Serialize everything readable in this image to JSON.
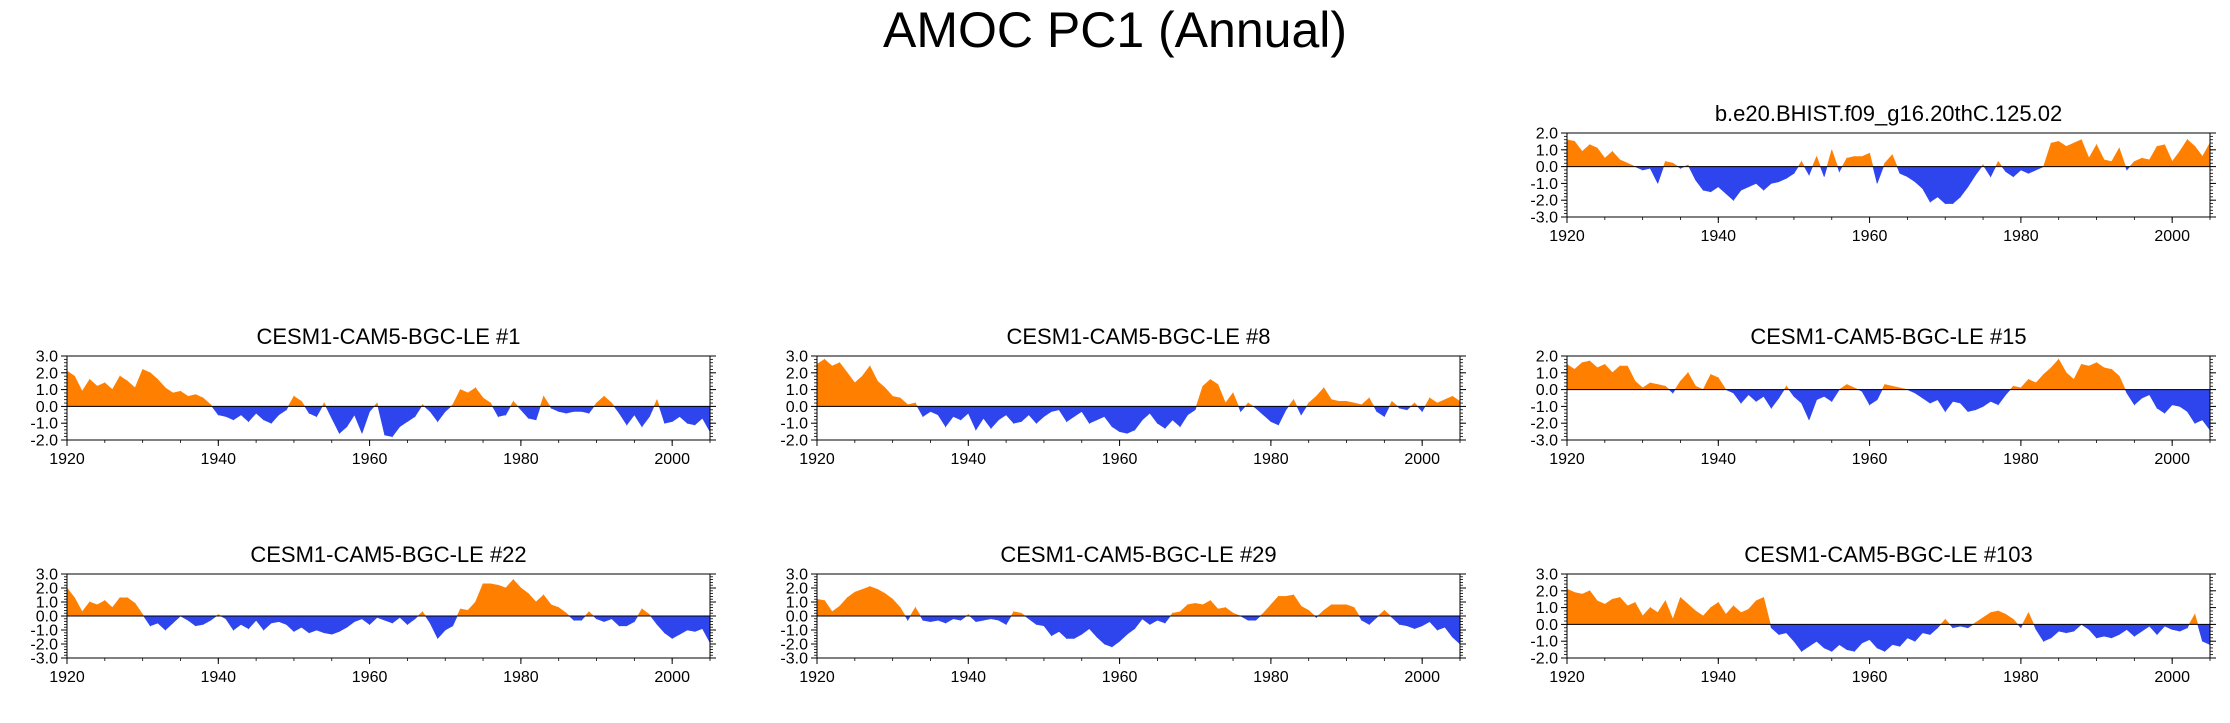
{
  "title": "AMOC PC1 (Annual)",
  "colors": {
    "positive": "#ff8000",
    "negative": "#2e45ee",
    "axis": "#000000"
  },
  "chart_data": [
    {
      "type": "area",
      "title": "b.e20.BHIST.f09_g16.20thC.125.02",
      "xlim": [
        1920,
        2005
      ],
      "ylim": [
        -3.0,
        2.0
      ],
      "yticks": [
        "2.0",
        "1.0",
        "0.0",
        "-1.0",
        "-2.0",
        "-3.0"
      ],
      "xticks": [
        "1920",
        "1940",
        "1960",
        "1980",
        "2000"
      ],
      "x": [
        1920,
        1921,
        1922,
        1923,
        1924,
        1925,
        1926,
        1927,
        1928,
        1929,
        1930,
        1931,
        1932,
        1933,
        1934,
        1935,
        1936,
        1937,
        1938,
        1939,
        1940,
        1941,
        1942,
        1943,
        1944,
        1945,
        1946,
        1947,
        1948,
        1949,
        1950,
        1951,
        1952,
        1953,
        1954,
        1955,
        1956,
        1957,
        1958,
        1959,
        1960,
        1961,
        1962,
        1963,
        1964,
        1965,
        1966,
        1967,
        1968,
        1969,
        1970,
        1971,
        1972,
        1973,
        1974,
        1975,
        1976,
        1977,
        1978,
        1979,
        1980,
        1981,
        1982,
        1983,
        1984,
        1985,
        1986,
        1987,
        1988,
        1989,
        1990,
        1991,
        1992,
        1993,
        1994,
        1995,
        1996,
        1997,
        1998,
        1999,
        2000,
        2001,
        2002,
        2003,
        2004,
        2005
      ],
      "values": [
        1.6,
        1.5,
        0.9,
        1.3,
        1.1,
        0.5,
        0.9,
        0.4,
        0.2,
        0.0,
        -0.2,
        -0.1,
        -1.0,
        0.3,
        0.2,
        -0.1,
        0.1,
        -0.8,
        -1.4,
        -1.5,
        -1.2,
        -1.6,
        -2.0,
        -1.4,
        -1.2,
        -1.0,
        -1.4,
        -1.0,
        -0.9,
        -0.7,
        -0.4,
        0.3,
        -0.5,
        0.6,
        -0.6,
        1.0,
        -0.3,
        0.5,
        0.6,
        0.6,
        0.8,
        -1.0,
        0.2,
        0.7,
        -0.4,
        -0.6,
        -0.9,
        -1.3,
        -2.1,
        -1.8,
        -2.2,
        -2.2,
        -1.8,
        -1.2,
        -0.5,
        0.1,
        -0.6,
        0.3,
        -0.3,
        -0.6,
        -0.2,
        -0.4,
        -0.2,
        0.0,
        1.4,
        1.5,
        1.2,
        1.4,
        1.6,
        0.5,
        1.3,
        0.4,
        0.3,
        1.1,
        -0.2,
        0.3,
        0.5,
        0.4,
        1.2,
        1.3,
        0.3,
        0.9,
        1.6,
        1.2,
        0.6,
        1.4
      ]
    },
    {
      "type": "area",
      "title": "CESM1-CAM5-BGC-LE #1",
      "xlim": [
        1920,
        2005
      ],
      "ylim": [
        -2.0,
        3.0
      ],
      "yticks": [
        "3.0",
        "2.0",
        "1.0",
        "0.0",
        "-1.0",
        "-2.0"
      ],
      "xticks": [
        "1920",
        "1940",
        "1960",
        "1980",
        "2000"
      ],
      "x": [
        1920,
        1921,
        1922,
        1923,
        1924,
        1925,
        1926,
        1927,
        1928,
        1929,
        1930,
        1931,
        1932,
        1933,
        1934,
        1935,
        1936,
        1937,
        1938,
        1939,
        1940,
        1941,
        1942,
        1943,
        1944,
        1945,
        1946,
        1947,
        1948,
        1949,
        1950,
        1951,
        1952,
        1953,
        1954,
        1955,
        1956,
        1957,
        1958,
        1959,
        1960,
        1961,
        1962,
        1963,
        1964,
        1965,
        1966,
        1967,
        1968,
        1969,
        1970,
        1971,
        1972,
        1973,
        1974,
        1975,
        1976,
        1977,
        1978,
        1979,
        1980,
        1981,
        1982,
        1983,
        1984,
        1985,
        1986,
        1987,
        1988,
        1989,
        1990,
        1991,
        1992,
        1993,
        1994,
        1995,
        1996,
        1997,
        1998,
        1999,
        2000,
        2001,
        2002,
        2003,
        2004,
        2005
      ],
      "values": [
        2.1,
        1.8,
        0.9,
        1.6,
        1.2,
        1.4,
        1.0,
        1.8,
        1.5,
        1.1,
        2.2,
        2.0,
        1.6,
        1.1,
        0.8,
        0.9,
        0.6,
        0.7,
        0.5,
        0.1,
        -0.5,
        -0.6,
        -0.8,
        -0.5,
        -0.9,
        -0.4,
        -0.8,
        -1.0,
        -0.5,
        -0.2,
        0.6,
        0.3,
        -0.4,
        -0.6,
        0.2,
        -0.7,
        -1.6,
        -1.2,
        -0.5,
        -1.6,
        -0.3,
        0.2,
        -1.7,
        -1.8,
        -1.2,
        -0.9,
        -0.6,
        0.1,
        -0.3,
        -0.9,
        -0.3,
        0.1,
        1.0,
        0.8,
        1.1,
        0.5,
        0.2,
        -0.6,
        -0.5,
        0.3,
        -0.2,
        -0.7,
        -0.8,
        0.6,
        -0.1,
        -0.3,
        -0.4,
        -0.3,
        -0.3,
        -0.4,
        0.2,
        0.6,
        0.2,
        -0.4,
        -1.1,
        -0.5,
        -1.2,
        -0.6,
        0.4,
        -1.0,
        -0.9,
        -0.6,
        -1.0,
        -1.1,
        -0.7,
        -1.5
      ]
    },
    {
      "type": "area",
      "title": "CESM1-CAM5-BGC-LE #8",
      "xlim": [
        1920,
        2005
      ],
      "ylim": [
        -2.0,
        3.0
      ],
      "yticks": [
        "3.0",
        "2.0",
        "1.0",
        "0.0",
        "-1.0",
        "-2.0"
      ],
      "xticks": [
        "1920",
        "1940",
        "1960",
        "1980",
        "2000"
      ],
      "x": [
        1920,
        1921,
        1922,
        1923,
        1924,
        1925,
        1926,
        1927,
        1928,
        1929,
        1930,
        1931,
        1932,
        1933,
        1934,
        1935,
        1936,
        1937,
        1938,
        1939,
        1940,
        1941,
        1942,
        1943,
        1944,
        1945,
        1946,
        1947,
        1948,
        1949,
        1950,
        1951,
        1952,
        1953,
        1954,
        1955,
        1956,
        1957,
        1958,
        1959,
        1960,
        1961,
        1962,
        1963,
        1964,
        1965,
        1966,
        1967,
        1968,
        1969,
        1970,
        1971,
        1972,
        1973,
        1974,
        1975,
        1976,
        1977,
        1978,
        1979,
        1980,
        1981,
        1982,
        1983,
        1984,
        1985,
        1986,
        1987,
        1988,
        1989,
        1990,
        1991,
        1992,
        1993,
        1994,
        1995,
        1996,
        1997,
        1998,
        1999,
        2000,
        2001,
        2002,
        2003,
        2004,
        2005
      ],
      "values": [
        2.5,
        2.8,
        2.4,
        2.6,
        2.0,
        1.4,
        1.8,
        2.4,
        1.5,
        1.1,
        0.6,
        0.5,
        0.1,
        0.2,
        -0.6,
        -0.3,
        -0.5,
        -1.2,
        -0.6,
        -0.8,
        -0.4,
        -1.4,
        -0.7,
        -1.3,
        -0.8,
        -0.5,
        -1.0,
        -0.9,
        -0.5,
        -1.0,
        -0.6,
        -0.3,
        -0.2,
        -0.9,
        -0.6,
        -0.3,
        -1.0,
        -0.8,
        -0.6,
        -1.2,
        -1.5,
        -1.6,
        -1.4,
        -0.8,
        -0.4,
        -1.0,
        -1.3,
        -0.8,
        -1.2,
        -0.5,
        -0.2,
        1.2,
        1.6,
        1.3,
        0.2,
        0.8,
        -0.3,
        0.2,
        -0.1,
        -0.5,
        -0.9,
        -1.1,
        -0.2,
        0.4,
        -0.5,
        0.2,
        0.6,
        1.1,
        0.4,
        0.3,
        0.3,
        0.2,
        0.1,
        0.5,
        -0.3,
        -0.6,
        0.3,
        -0.1,
        -0.2,
        0.2,
        -0.3,
        0.5,
        0.2,
        0.4,
        0.6,
        0.3
      ]
    },
    {
      "type": "area",
      "title": "CESM1-CAM5-BGC-LE #15",
      "xlim": [
        1920,
        2005
      ],
      "ylim": [
        -3.0,
        2.0
      ],
      "yticks": [
        "2.0",
        "1.0",
        "0.0",
        "-1.0",
        "-2.0",
        "-3.0"
      ],
      "xticks": [
        "1920",
        "1940",
        "1960",
        "1980",
        "2000"
      ],
      "x": [
        1920,
        1921,
        1922,
        1923,
        1924,
        1925,
        1926,
        1927,
        1928,
        1929,
        1930,
        1931,
        1932,
        1933,
        1934,
        1935,
        1936,
        1937,
        1938,
        1939,
        1940,
        1941,
        1942,
        1943,
        1944,
        1945,
        1946,
        1947,
        1948,
        1949,
        1950,
        1951,
        1952,
        1953,
        1954,
        1955,
        1956,
        1957,
        1958,
        1959,
        1960,
        1961,
        1962,
        1963,
        1964,
        1965,
        1966,
        1967,
        1968,
        1969,
        1970,
        1971,
        1972,
        1973,
        1974,
        1975,
        1976,
        1977,
        1978,
        1979,
        1980,
        1981,
        1982,
        1983,
        1984,
        1985,
        1986,
        1987,
        1988,
        1989,
        1990,
        1991,
        1992,
        1993,
        1994,
        1995,
        1996,
        1997,
        1998,
        1999,
        2000,
        2001,
        2002,
        2003,
        2004,
        2005
      ],
      "values": [
        1.5,
        1.2,
        1.6,
        1.7,
        1.3,
        1.5,
        1.0,
        1.4,
        1.4,
        0.5,
        0.1,
        0.4,
        0.3,
        0.2,
        -0.2,
        0.5,
        1.0,
        0.2,
        0.0,
        0.9,
        0.7,
        0.0,
        -0.2,
        -0.8,
        -0.3,
        -0.7,
        -0.4,
        -1.1,
        -0.5,
        0.2,
        -0.4,
        -0.8,
        -1.8,
        -0.6,
        -0.4,
        -0.7,
        0.0,
        0.3,
        0.1,
        -0.1,
        -0.9,
        -0.6,
        0.3,
        0.2,
        0.1,
        0.0,
        -0.2,
        -0.5,
        -0.8,
        -0.6,
        -1.3,
        -0.7,
        -0.8,
        -1.3,
        -1.2,
        -1.0,
        -0.7,
        -0.9,
        -0.3,
        0.2,
        0.1,
        0.6,
        0.4,
        0.9,
        1.3,
        1.8,
        1.0,
        0.6,
        1.5,
        1.4,
        1.6,
        1.3,
        1.2,
        0.8,
        -0.2,
        -0.9,
        -0.5,
        -0.3,
        -1.1,
        -1.4,
        -0.9,
        -1.0,
        -1.3,
        -2.0,
        -1.8,
        -2.4
      ]
    },
    {
      "type": "area",
      "title": "CESM1-CAM5-BGC-LE #22",
      "xlim": [
        1920,
        2005
      ],
      "ylim": [
        -3.0,
        3.0
      ],
      "yticks": [
        "3.0",
        "2.0",
        "1.0",
        "0.0",
        "-1.0",
        "-2.0",
        "-3.0"
      ],
      "xticks": [
        "1920",
        "1940",
        "1960",
        "1980",
        "2000"
      ],
      "x": [
        1920,
        1921,
        1922,
        1923,
        1924,
        1925,
        1926,
        1927,
        1928,
        1929,
        1930,
        1931,
        1932,
        1933,
        1934,
        1935,
        1936,
        1937,
        1938,
        1939,
        1940,
        1941,
        1942,
        1943,
        1944,
        1945,
        1946,
        1947,
        1948,
        1949,
        1950,
        1951,
        1952,
        1953,
        1954,
        1955,
        1956,
        1957,
        1958,
        1959,
        1960,
        1961,
        1962,
        1963,
        1964,
        1965,
        1966,
        1967,
        1968,
        1969,
        1970,
        1971,
        1972,
        1973,
        1974,
        1975,
        1976,
        1977,
        1978,
        1979,
        1980,
        1981,
        1982,
        1983,
        1984,
        1985,
        1986,
        1987,
        1988,
        1989,
        1990,
        1991,
        1992,
        1993,
        1994,
        1995,
        1996,
        1997,
        1998,
        1999,
        2000,
        2001,
        2002,
        2003,
        2004,
        2005
      ],
      "values": [
        2.0,
        1.3,
        0.3,
        1.0,
        0.8,
        1.1,
        0.6,
        1.3,
        1.3,
        0.9,
        0.1,
        -0.7,
        -0.5,
        -1.0,
        -0.5,
        0.0,
        -0.3,
        -0.7,
        -0.6,
        -0.3,
        0.1,
        -0.2,
        -1.0,
        -0.6,
        -0.9,
        -0.3,
        -1.0,
        -0.5,
        -0.4,
        -0.6,
        -1.1,
        -0.8,
        -1.2,
        -1.0,
        -1.2,
        -1.3,
        -1.1,
        -0.8,
        -0.4,
        -0.2,
        -0.6,
        -0.1,
        -0.3,
        -0.5,
        -0.1,
        -0.6,
        -0.2,
        0.3,
        -0.5,
        -1.6,
        -1.0,
        -0.7,
        0.5,
        0.4,
        1.0,
        2.3,
        2.3,
        2.2,
        2.0,
        2.6,
        2.0,
        1.6,
        1.0,
        1.5,
        0.8,
        0.6,
        0.2,
        -0.3,
        -0.3,
        0.3,
        -0.2,
        -0.4,
        -0.2,
        -0.7,
        -0.7,
        -0.4,
        0.5,
        0.1,
        -0.6,
        -1.2,
        -1.6,
        -1.3,
        -1.0,
        -1.1,
        -0.9,
        -1.9
      ]
    },
    {
      "type": "area",
      "title": "CESM1-CAM5-BGC-LE #29",
      "xlim": [
        1920,
        2005
      ],
      "ylim": [
        -3.0,
        3.0
      ],
      "yticks": [
        "3.0",
        "2.0",
        "1.0",
        "0.0",
        "-1.0",
        "-2.0",
        "-3.0"
      ],
      "xticks": [
        "1920",
        "1940",
        "1960",
        "1980",
        "2000"
      ],
      "x": [
        1920,
        1921,
        1922,
        1923,
        1924,
        1925,
        1926,
        1927,
        1928,
        1929,
        1930,
        1931,
        1932,
        1933,
        1934,
        1935,
        1936,
        1937,
        1938,
        1939,
        1940,
        1941,
        1942,
        1943,
        1944,
        1945,
        1946,
        1947,
        1948,
        1949,
        1950,
        1951,
        1952,
        1953,
        1954,
        1955,
        1956,
        1957,
        1958,
        1959,
        1960,
        1961,
        1962,
        1963,
        1964,
        1965,
        1966,
        1967,
        1968,
        1969,
        1970,
        1971,
        1972,
        1973,
        1974,
        1975,
        1976,
        1977,
        1978,
        1979,
        1980,
        1981,
        1982,
        1983,
        1984,
        1985,
        1986,
        1987,
        1988,
        1989,
        1990,
        1991,
        1992,
        1993,
        1994,
        1995,
        1996,
        1997,
        1998,
        1999,
        2000,
        2001,
        2002,
        2003,
        2004,
        2005
      ],
      "values": [
        1.2,
        1.1,
        0.3,
        0.7,
        1.3,
        1.7,
        1.9,
        2.1,
        1.9,
        1.6,
        1.2,
        0.6,
        -0.3,
        0.6,
        -0.3,
        -0.4,
        -0.3,
        -0.5,
        -0.2,
        -0.3,
        0.1,
        -0.4,
        -0.3,
        -0.2,
        -0.3,
        -0.6,
        0.3,
        0.2,
        -0.2,
        -0.6,
        -0.7,
        -1.4,
        -1.1,
        -1.6,
        -1.6,
        -1.3,
        -0.9,
        -1.5,
        -2.0,
        -2.2,
        -1.8,
        -1.3,
        -0.9,
        -0.2,
        -0.6,
        -0.3,
        -0.5,
        0.2,
        0.3,
        0.8,
        0.9,
        0.8,
        1.1,
        0.5,
        0.6,
        0.2,
        0.0,
        -0.3,
        -0.3,
        0.2,
        0.8,
        1.4,
        1.4,
        1.5,
        0.7,
        0.4,
        -0.1,
        0.4,
        0.8,
        0.8,
        0.8,
        0.6,
        -0.3,
        -0.6,
        -0.1,
        0.4,
        -0.1,
        -0.6,
        -0.7,
        -0.9,
        -0.7,
        -0.4,
        -1.0,
        -0.8,
        -1.5,
        -2.0
      ]
    },
    {
      "type": "area",
      "title": "CESM1-CAM5-BGC-LE #103",
      "xlim": [
        1920,
        2005
      ],
      "ylim": [
        -2.0,
        3.0
      ],
      "yticks": [
        "3.0",
        "2.0",
        "1.0",
        "0.0",
        "-1.0",
        "-2.0"
      ],
      "xticks": [
        "1920",
        "1940",
        "1960",
        "1980",
        "2000"
      ],
      "x": [
        1920,
        1921,
        1922,
        1923,
        1924,
        1925,
        1926,
        1927,
        1928,
        1929,
        1930,
        1931,
        1932,
        1933,
        1934,
        1935,
        1936,
        1937,
        1938,
        1939,
        1940,
        1941,
        1942,
        1943,
        1944,
        1945,
        1946,
        1947,
        1948,
        1949,
        1950,
        1951,
        1952,
        1953,
        1954,
        1955,
        1956,
        1957,
        1958,
        1959,
        1960,
        1961,
        1962,
        1963,
        1964,
        1965,
        1966,
        1967,
        1968,
        1969,
        1970,
        1971,
        1972,
        1973,
        1974,
        1975,
        1976,
        1977,
        1978,
        1979,
        1980,
        1981,
        1982,
        1983,
        1984,
        1985,
        1986,
        1987,
        1988,
        1989,
        1990,
        1991,
        1992,
        1993,
        1994,
        1995,
        1996,
        1997,
        1998,
        1999,
        2000,
        2001,
        2002,
        2003,
        2004,
        2005
      ],
      "values": [
        2.1,
        1.9,
        1.8,
        2.0,
        1.4,
        1.2,
        1.5,
        1.6,
        1.1,
        1.3,
        0.5,
        1.0,
        0.7,
        1.4,
        0.3,
        1.6,
        1.2,
        0.8,
        0.5,
        1.0,
        1.3,
        0.6,
        1.1,
        0.7,
        0.9,
        1.4,
        1.6,
        -0.2,
        -0.6,
        -0.5,
        -1.0,
        -1.6,
        -1.3,
        -1.0,
        -1.4,
        -1.6,
        -1.2,
        -1.5,
        -1.6,
        -1.1,
        -0.9,
        -1.4,
        -1.6,
        -1.2,
        -1.3,
        -0.8,
        -1.0,
        -0.5,
        -0.6,
        -0.2,
        0.3,
        -0.2,
        -0.1,
        -0.2,
        0.1,
        0.4,
        0.7,
        0.8,
        0.6,
        0.3,
        -0.2,
        0.7,
        -0.3,
        -1.0,
        -0.8,
        -0.4,
        -0.5,
        -0.4,
        0.0,
        -0.3,
        -0.8,
        -0.7,
        -0.8,
        -0.6,
        -0.3,
        -0.7,
        -0.4,
        -0.1,
        -0.6,
        -0.1,
        -0.3,
        -0.4,
        -0.2,
        0.6,
        -1.0,
        -1.2
      ]
    }
  ]
}
